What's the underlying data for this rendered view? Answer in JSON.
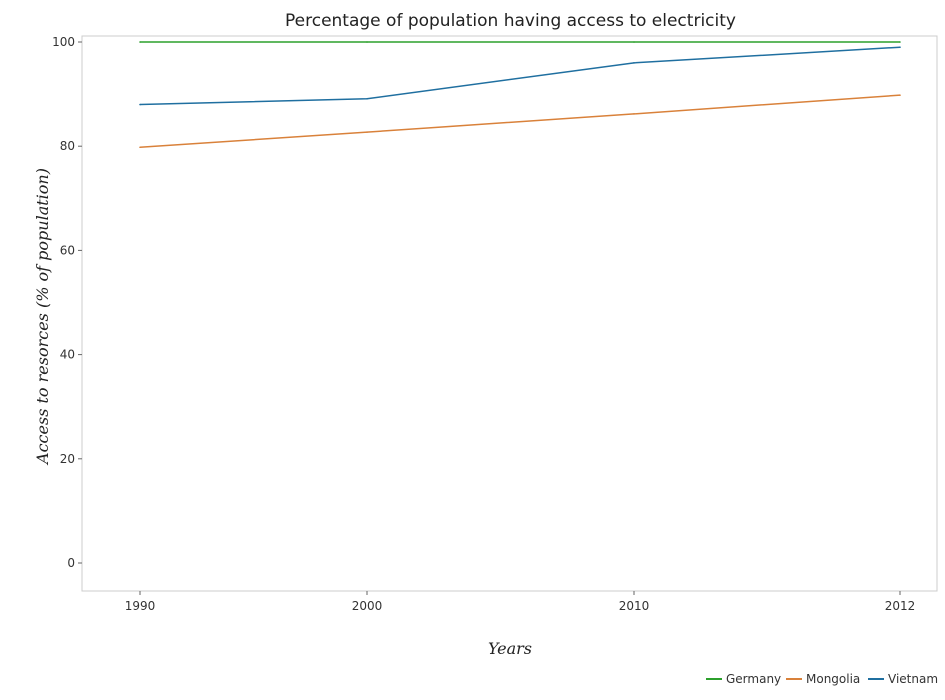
{
  "chart_data": {
    "type": "line",
    "title": "Percentage of population having access to electricity",
    "xlabel": "Years",
    "ylabel": "Access to resorces (% of population)",
    "categories": [
      "1990",
      "2000",
      "2010",
      "2012"
    ],
    "ylim": [
      0,
      100
    ],
    "yticks": [
      0,
      20,
      40,
      60,
      80,
      100
    ],
    "grid": false,
    "legend_position": "bottom-right",
    "series": [
      {
        "name": "Germany",
        "color": "#2ca02c",
        "values": [
          100,
          100,
          100,
          100
        ]
      },
      {
        "name": "Mongolia",
        "color": "#d9813a",
        "values": [
          79.8,
          82.7,
          86.2,
          89.8
        ]
      },
      {
        "name": "Vietnam",
        "color": "#1f6fa0",
        "values": [
          88.0,
          89.1,
          96.0,
          99.0
        ]
      }
    ]
  }
}
